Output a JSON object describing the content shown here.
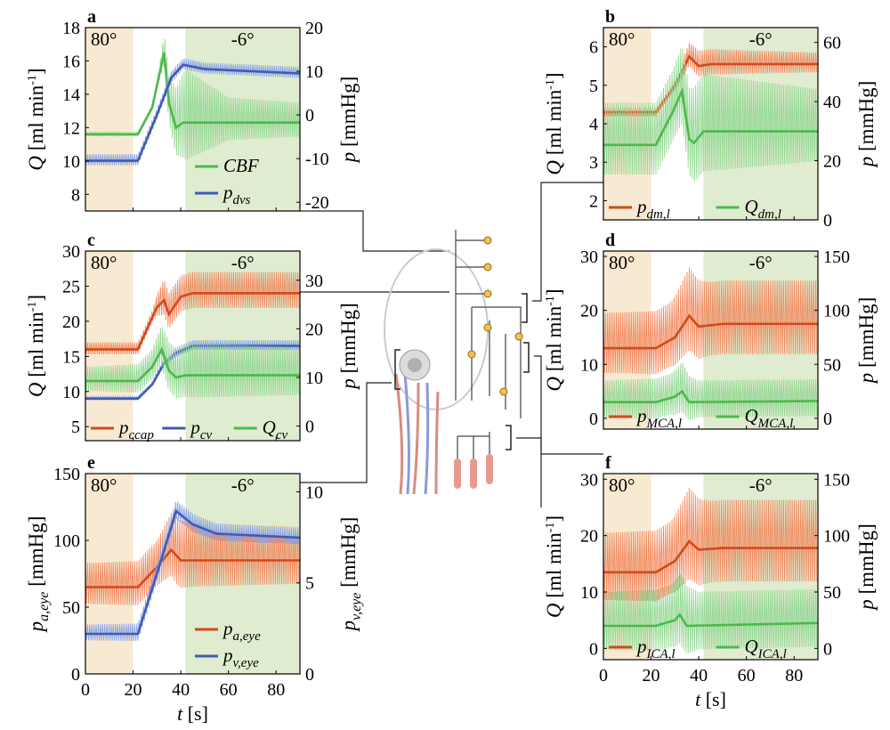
{
  "figure": {
    "time_axis": {
      "ticks": [
        "0",
        "20",
        "40",
        "60",
        "80"
      ],
      "label_var": "t",
      "label_unit": " [s]"
    },
    "phase_labels": {
      "upright": "80°",
      "tilt": "-6°"
    },
    "colors": {
      "upright_band": "#f8ead2",
      "tilt_band": "#dfeccf",
      "red": "#d04a1c",
      "blue": "#3e5bb5",
      "green": "#4cb94c",
      "light_red": "#f08a60",
      "light_blue": "#8aa4e6",
      "light_green": "#93d793"
    }
  },
  "chart_data": [
    {
      "id": "a",
      "type": "line",
      "panel_label": "a",
      "left_axis": {
        "var": "Q",
        "unit": " [ml min",
        "sup": "-1",
        "close": "]",
        "ticks": [
          "8",
          "10",
          "12",
          "14",
          "16",
          "18"
        ],
        "ylim": [
          7,
          18
        ]
      },
      "right_axis": {
        "var": "p",
        "unit": " [mmHg]",
        "ticks": [
          "-20",
          "-10",
          "0",
          "10",
          "20"
        ],
        "ylim": [
          -22,
          20
        ]
      },
      "xlim": [
        0,
        90
      ],
      "upright_until": 20,
      "tilt_from": 42,
      "legend": [
        {
          "name": "CBF",
          "sub": "",
          "color": "green"
        },
        {
          "name": "p",
          "sub": "dvs",
          "color": "blue"
        }
      ],
      "legend_placement": "lower-right",
      "series": [
        {
          "name": "CBF",
          "axis": "left",
          "color": "green",
          "mean": [
            [
              0,
              11.6
            ],
            [
              22,
              11.6
            ],
            [
              28,
              13.2
            ],
            [
              33,
              16.5
            ],
            [
              35,
              13.5
            ],
            [
              38,
              12.0
            ],
            [
              41,
              12.3
            ],
            [
              90,
              12.3
            ]
          ],
          "osc_half_amp": [
            [
              0,
              0.15
            ],
            [
              30,
              0.15
            ],
            [
              34,
              1.5
            ],
            [
              42,
              3.2
            ],
            [
              60,
              1.5
            ],
            [
              90,
              1.2
            ]
          ]
        },
        {
          "name": "p_dvs",
          "axis": "right",
          "color": "blue",
          "mean": [
            [
              0,
              -10.5
            ],
            [
              22,
              -10.5
            ],
            [
              30,
              0
            ],
            [
              36,
              8.5
            ],
            [
              41,
              11.5
            ],
            [
              50,
              10.5
            ],
            [
              90,
              9.5
            ]
          ],
          "osc_half_amp": [
            [
              0,
              1.5
            ],
            [
              90,
              1.5
            ]
          ]
        }
      ]
    },
    {
      "id": "b",
      "type": "line",
      "panel_label": "b",
      "left_axis": {
        "var": "Q",
        "unit": " [ml min",
        "sup": "-1",
        "close": "]",
        "ticks": [
          "2",
          "3",
          "4",
          "5",
          "6"
        ],
        "ylim": [
          1.5,
          6.5
        ]
      },
      "right_axis": {
        "var": "p",
        "unit": " [mmHg]",
        "ticks": [
          "0",
          "20",
          "40",
          "60"
        ],
        "ylim": [
          0,
          65
        ]
      },
      "xlim": [
        0,
        90
      ],
      "upright_until": 20,
      "tilt_from": 42,
      "legend": [
        {
          "name": "p",
          "sub": "dm,l",
          "color": "red"
        },
        {
          "name": "Q",
          "sub": "dm,l",
          "color": "green"
        }
      ],
      "legend_placement": "bottom",
      "series": [
        {
          "name": "p_dm,l",
          "axis": "left",
          "color": "red",
          "mean": [
            [
              0,
              4.3
            ],
            [
              22,
              4.3
            ],
            [
              30,
              5.0
            ],
            [
              36,
              5.75
            ],
            [
              40,
              5.5
            ],
            [
              45,
              5.55
            ],
            [
              90,
              5.55
            ]
          ],
          "osc_half_amp": [
            [
              0,
              0.15
            ],
            [
              28,
              0.15
            ],
            [
              38,
              0.4
            ],
            [
              90,
              0.3
            ]
          ]
        },
        {
          "name": "Q_dm,l",
          "axis": "left",
          "color": "green",
          "mean": [
            [
              0,
              3.45
            ],
            [
              22,
              3.45
            ],
            [
              29,
              4.3
            ],
            [
              33,
              4.85
            ],
            [
              36,
              3.6
            ],
            [
              38,
              3.5
            ],
            [
              42,
              3.8
            ],
            [
              90,
              3.8
            ]
          ],
          "osc_half_amp": [
            [
              0,
              1.1
            ],
            [
              30,
              1.1
            ],
            [
              40,
              1.5
            ],
            [
              90,
              1.1
            ]
          ]
        }
      ]
    },
    {
      "id": "c",
      "type": "line",
      "panel_label": "c",
      "left_axis": {
        "var": "Q",
        "unit": " [ml min",
        "sup": "-1",
        "close": "]",
        "ticks": [
          "5",
          "10",
          "15",
          "20",
          "25",
          "30"
        ],
        "ylim": [
          3,
          30
        ]
      },
      "right_axis": {
        "var": "p",
        "unit": " [mmHg]",
        "ticks": [
          "0",
          "10",
          "20",
          "30"
        ],
        "ylim": [
          -3,
          36
        ]
      },
      "xlim": [
        0,
        90
      ],
      "upright_until": 20,
      "tilt_from": 42,
      "legend": [
        {
          "name": "p",
          "sub": "ccap",
          "color": "red"
        },
        {
          "name": "p",
          "sub": "cv",
          "color": "blue"
        },
        {
          "name": "Q",
          "sub": "cv",
          "color": "green"
        }
      ],
      "legend_placement": "bottom",
      "series": [
        {
          "name": "p_ccap",
          "axis": "left",
          "color": "red",
          "mean": [
            [
              0,
              16
            ],
            [
              22,
              16
            ],
            [
              30,
              22
            ],
            [
              33,
              23
            ],
            [
              35,
              21
            ],
            [
              40,
              23.5
            ],
            [
              45,
              24
            ],
            [
              90,
              24
            ]
          ],
          "osc_half_amp": [
            [
              0,
              1.0
            ],
            [
              28,
              1.0
            ],
            [
              33,
              3.0
            ],
            [
              40,
              3.0
            ],
            [
              90,
              3.0
            ]
          ]
        },
        {
          "name": "p_cv",
          "axis": "left",
          "color": "blue",
          "mean": [
            [
              0,
              9
            ],
            [
              22,
              9
            ],
            [
              28,
              11
            ],
            [
              33,
              14
            ],
            [
              38,
              15.5
            ],
            [
              45,
              16.5
            ],
            [
              90,
              16.5
            ]
          ],
          "osc_half_amp": [
            [
              0,
              0.3
            ],
            [
              28,
              0.3
            ],
            [
              34,
              0.8
            ],
            [
              90,
              0.8
            ]
          ]
        },
        {
          "name": "Q_cv",
          "axis": "left",
          "color": "green",
          "mean": [
            [
              0,
              11.5
            ],
            [
              22,
              11.5
            ],
            [
              28,
              13.5
            ],
            [
              32,
              16
            ],
            [
              35,
              13
            ],
            [
              38,
              12
            ],
            [
              42,
              12.3
            ],
            [
              90,
              12.3
            ]
          ],
          "osc_half_amp": [
            [
              0,
              2.0
            ],
            [
              28,
              2.5
            ],
            [
              34,
              4.0
            ],
            [
              45,
              4.5
            ],
            [
              90,
              4.0
            ]
          ]
        }
      ]
    },
    {
      "id": "d",
      "type": "line",
      "panel_label": "d",
      "left_axis": {
        "var": "Q",
        "unit": " [ml min",
        "sup": "-1",
        "close": "]",
        "ticks": [
          "0",
          "10",
          "20",
          "30"
        ],
        "ylim": [
          -2,
          31
        ]
      },
      "right_axis": {
        "var": "p",
        "unit": " [mmHg]",
        "ticks": [
          "0",
          "50",
          "100",
          "150"
        ],
        "ylim": [
          -10,
          155
        ]
      },
      "xlim": [
        0,
        90
      ],
      "upright_until": 20,
      "tilt_from": 42,
      "legend": [
        {
          "name": "p",
          "sub": "MCA,l",
          "color": "red"
        },
        {
          "name": "Q",
          "sub": "MCA,l",
          "color": "green"
        }
      ],
      "legend_placement": "bottom",
      "series": [
        {
          "name": "p_MCA,l",
          "axis": "left",
          "color": "red",
          "mean": [
            [
              0,
              13
            ],
            [
              22,
              13
            ],
            [
              30,
              15
            ],
            [
              36,
              19
            ],
            [
              40,
              17
            ],
            [
              50,
              17.5
            ],
            [
              90,
              17.5
            ]
          ],
          "osc_half_amp": [
            [
              0,
              6.5
            ],
            [
              28,
              7.0
            ],
            [
              36,
              9.0
            ],
            [
              45,
              8.0
            ],
            [
              90,
              8.0
            ]
          ]
        },
        {
          "name": "Q_MCA,l",
          "axis": "left",
          "color": "green",
          "mean": [
            [
              0,
              3.0
            ],
            [
              22,
              3.0
            ],
            [
              30,
              4.0
            ],
            [
              33,
              5.0
            ],
            [
              36,
              3.0
            ],
            [
              90,
              3.2
            ]
          ],
          "osc_half_amp": [
            [
              0,
              4.0
            ],
            [
              28,
              4.5
            ],
            [
              33,
              5.5
            ],
            [
              40,
              4.0
            ],
            [
              90,
              4.0
            ]
          ]
        }
      ]
    },
    {
      "id": "e",
      "type": "line",
      "panel_label": "e",
      "left_axis": {
        "var": "p",
        "var_sub": "a,eye",
        "unit": " [mmHg]",
        "ticks": [
          "0",
          "50",
          "100",
          "150"
        ],
        "ylim": [
          0,
          150
        ]
      },
      "right_axis": {
        "var": "p",
        "var_sub": "v,eye",
        "unit": " [mmHg]",
        "ticks": [
          "0",
          "5",
          "10"
        ],
        "ylim": [
          0,
          11
        ]
      },
      "xlim": [
        0,
        90
      ],
      "upright_until": 20,
      "tilt_from": 42,
      "x_axis_shown": true,
      "legend": [
        {
          "name": "p",
          "sub": "a,eye",
          "color": "red"
        },
        {
          "name": "p",
          "sub": "v,eye",
          "color": "blue"
        }
      ],
      "legend_placement": "lower-right",
      "series": [
        {
          "name": "p_a,eye",
          "axis": "left",
          "color": "red",
          "mean": [
            [
              0,
              65
            ],
            [
              22,
              65
            ],
            [
              30,
              80
            ],
            [
              36,
              93
            ],
            [
              40,
              85
            ],
            [
              50,
              85
            ],
            [
              90,
              85
            ]
          ],
          "osc_half_amp": [
            [
              0,
              18
            ],
            [
              30,
              20
            ],
            [
              38,
              30
            ],
            [
              45,
              28
            ],
            [
              90,
              25
            ]
          ]
        },
        {
          "name": "p_v,eye",
          "axis": "left",
          "color": "blue",
          "mean": [
            [
              0,
              30
            ],
            [
              22,
              30
            ],
            [
              30,
              75
            ],
            [
              38,
              122
            ],
            [
              45,
              112
            ],
            [
              55,
              105
            ],
            [
              90,
              102
            ]
          ],
          "osc_half_amp": [
            [
              0,
              7
            ],
            [
              30,
              8
            ],
            [
              40,
              8
            ],
            [
              90,
              7
            ]
          ]
        }
      ]
    },
    {
      "id": "f",
      "type": "line",
      "panel_label": "f",
      "left_axis": {
        "var": "Q",
        "unit": " [ml min",
        "sup": "-1",
        "close": "]",
        "ticks": [
          "0",
          "10",
          "20",
          "30"
        ],
        "ylim": [
          -2,
          31
        ]
      },
      "right_axis": {
        "var": "p",
        "unit": " [mmHg]",
        "ticks": [
          "0",
          "50",
          "100",
          "150"
        ],
        "ylim": [
          -10,
          155
        ]
      },
      "xlim": [
        0,
        90
      ],
      "upright_until": 20,
      "tilt_from": 42,
      "x_axis_shown": true,
      "legend": [
        {
          "name": "p",
          "sub": "ICA,l",
          "color": "red"
        },
        {
          "name": "Q",
          "sub": "ICA,l",
          "color": "green"
        }
      ],
      "legend_placement": "bottom",
      "series": [
        {
          "name": "p_ICA,l",
          "axis": "left",
          "color": "red",
          "mean": [
            [
              0,
              13.5
            ],
            [
              22,
              13.5
            ],
            [
              30,
              15.5
            ],
            [
              36,
              19
            ],
            [
              40,
              17.5
            ],
            [
              50,
              17.8
            ],
            [
              90,
              17.8
            ]
          ],
          "osc_half_amp": [
            [
              0,
              7.0
            ],
            [
              28,
              7.5
            ],
            [
              36,
              9.5
            ],
            [
              45,
              8.5
            ],
            [
              90,
              8.5
            ]
          ]
        },
        {
          "name": "Q_ICA,l",
          "axis": "left",
          "color": "green",
          "mean": [
            [
              0,
              4.0
            ],
            [
              22,
              4.0
            ],
            [
              30,
              5.0
            ],
            [
              32,
              6.0
            ],
            [
              35,
              4.0
            ],
            [
              90,
              4.5
            ]
          ],
          "osc_half_amp": [
            [
              0,
              6.0
            ],
            [
              28,
              6.5
            ],
            [
              33,
              7.5
            ],
            [
              40,
              6.0
            ],
            [
              90,
              6.0
            ]
          ]
        }
      ]
    }
  ]
}
